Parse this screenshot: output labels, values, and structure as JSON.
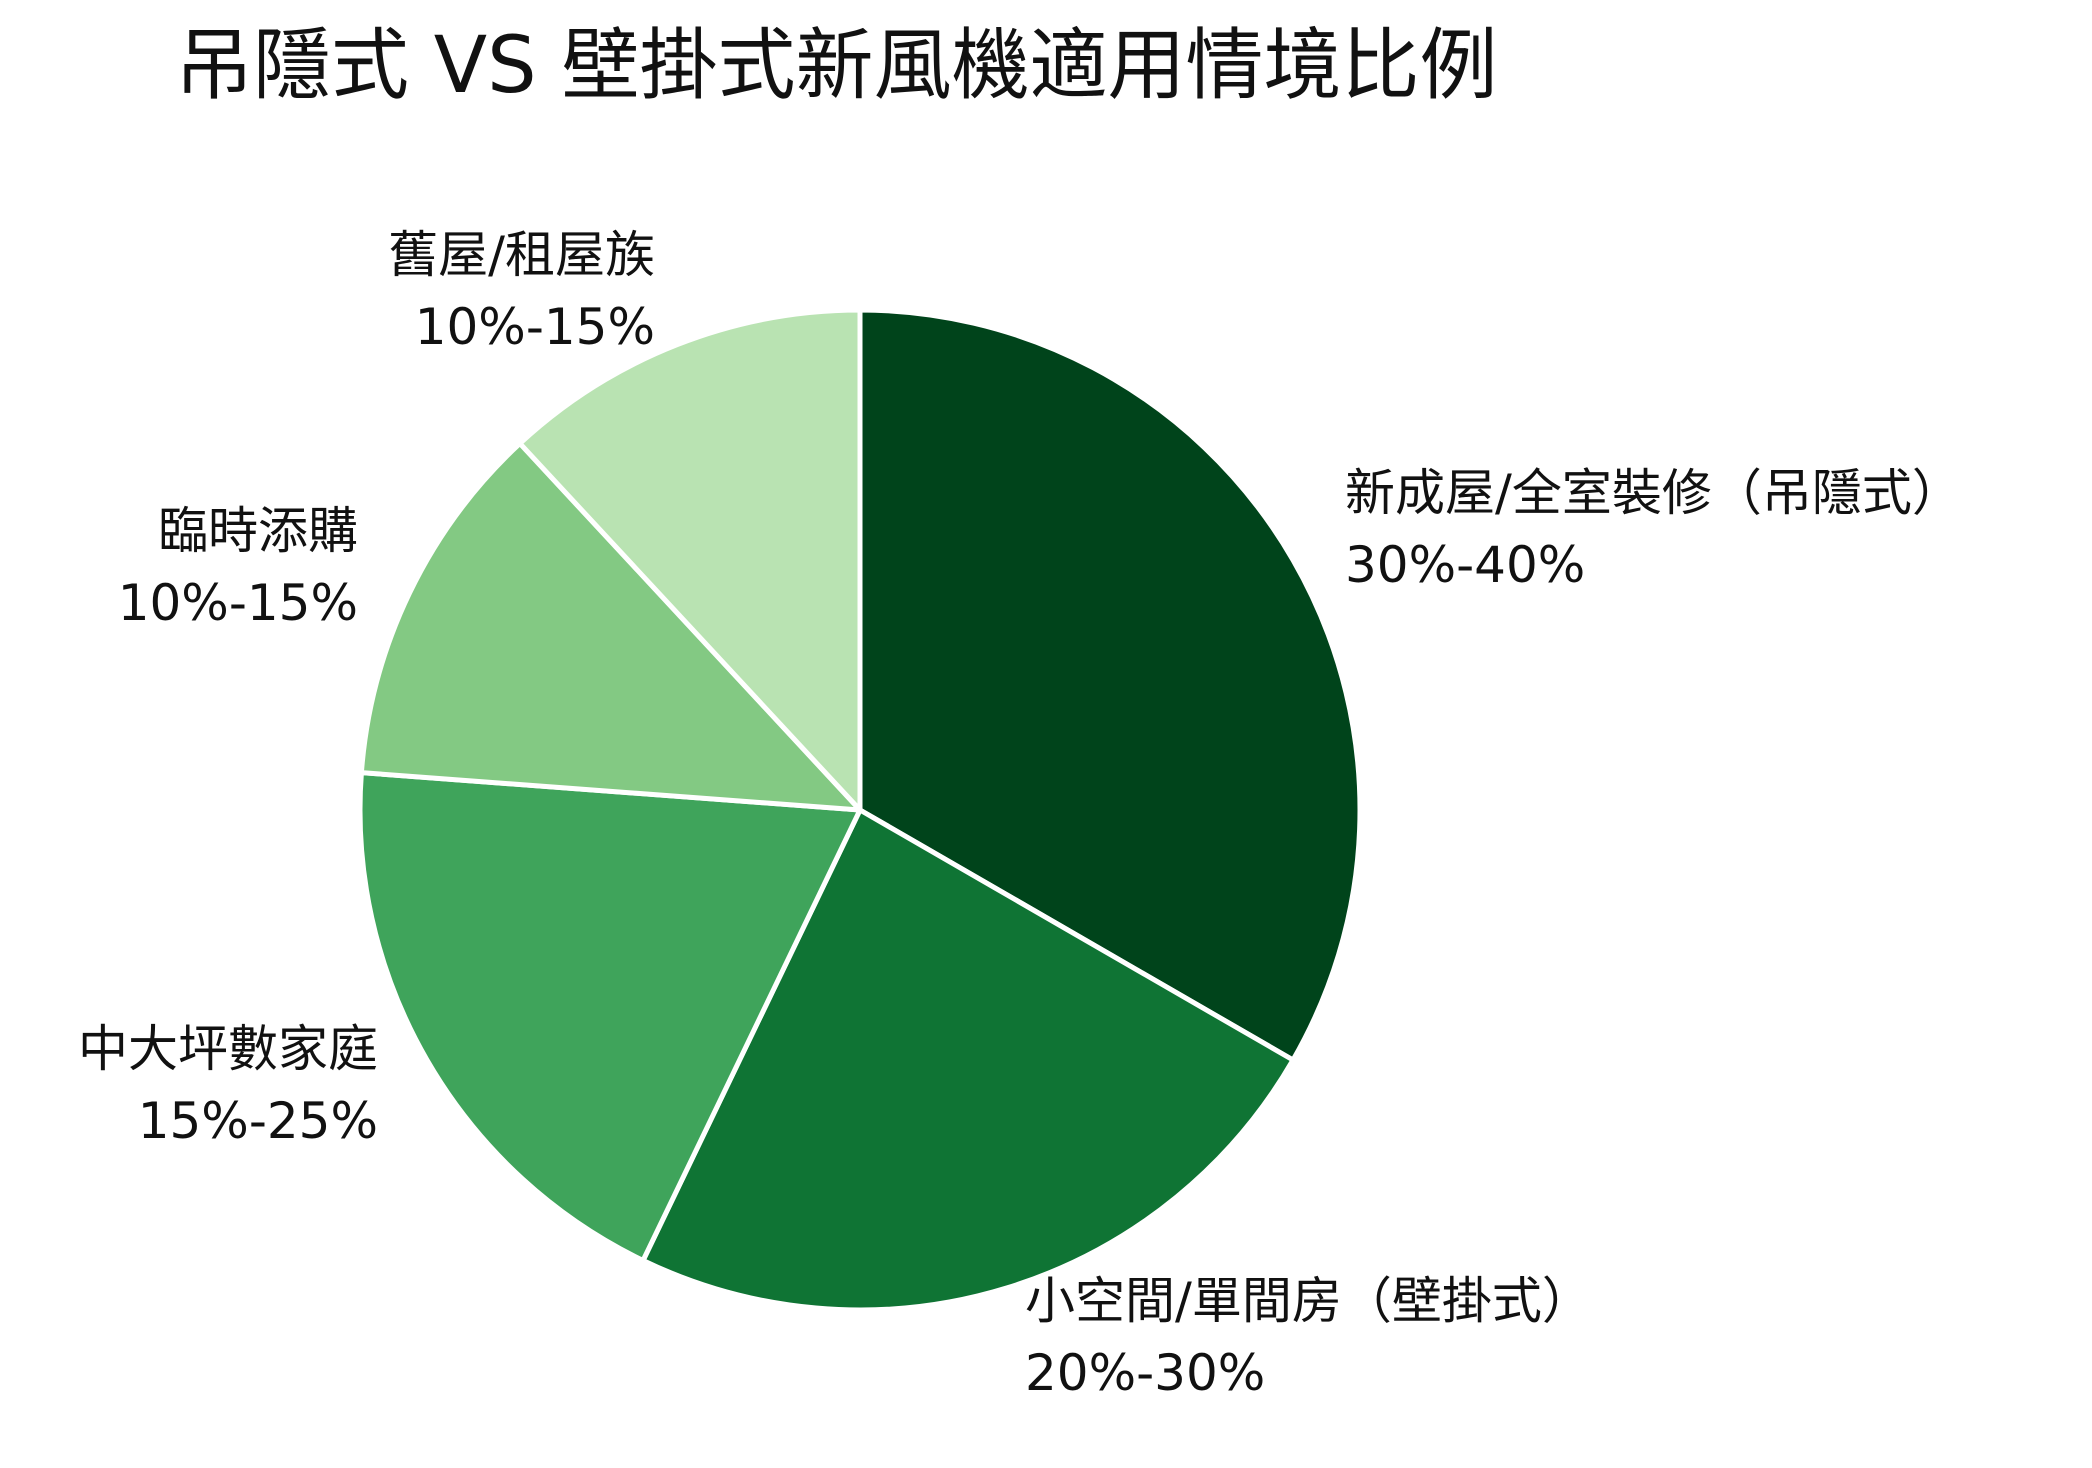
{
  "chart_data": {
    "type": "pie",
    "title": "吊隱式 VS 壁掛式新風機適用情境比例",
    "start_angle_deg": 0,
    "direction": "clockwise",
    "slices": [
      {
        "label": "新成屋/全室裝修（吊隱式）",
        "value_text": "30%-40%",
        "value": 35,
        "color": "#00441b"
      },
      {
        "label": "小空間/單間房（壁掛式）",
        "value_text": "20%-30%",
        "value": 25,
        "color": "#0f7434"
      },
      {
        "label": "中大坪數家庭",
        "value_text": "15%-25%",
        "value": 20,
        "color": "#3fa45b"
      },
      {
        "label": "臨時添購",
        "value_text": "10%-15%",
        "value": 12.5,
        "color": "#83c983"
      },
      {
        "label": "舊屋/租屋族",
        "value_text": "10%-15%",
        "value": 12.5,
        "color": "#b9e3b2"
      }
    ]
  }
}
